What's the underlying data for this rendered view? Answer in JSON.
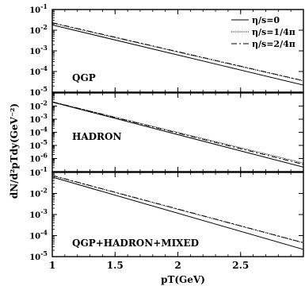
{
  "chart_data": [
    {
      "type": "line",
      "panel_label": "QGP",
      "y_scale": "log",
      "ylim": [
        1e-05,
        0.1
      ],
      "yticks": [
        "10-5",
        "10-4",
        "10-3",
        "10-2",
        "10-1"
      ],
      "x": [
        1,
        3
      ],
      "series": [
        {
          "name": "η/s=0",
          "style": "solid",
          "values": [
            0.018,
            2.2e-05
          ]
        },
        {
          "name": "η/s=1/4π",
          "style": "dotted",
          "values": [
            0.022,
            3.5e-05
          ]
        },
        {
          "name": "η/s=2/4π",
          "style": "dashdot",
          "values": [
            0.023,
            3.6e-05
          ]
        }
      ]
    },
    {
      "type": "line",
      "panel_label": "HADRON",
      "y_scale": "log",
      "ylim": [
        1e-07,
        0.1
      ],
      "yticks": [
        "10-6",
        "10-5",
        "10-4",
        "10-3",
        "10-2"
      ],
      "x": [
        1,
        3
      ],
      "series": [
        {
          "name": "η/s=0",
          "style": "solid",
          "values": [
            0.02,
            2.2e-07
          ]
        },
        {
          "name": "η/s=1/4π",
          "style": "dotted",
          "values": [
            0.021,
            4.5e-07
          ]
        },
        {
          "name": "η/s=2/4π",
          "style": "dashdot",
          "values": [
            0.021,
            3.6e-07
          ]
        }
      ]
    },
    {
      "type": "line",
      "panel_label": "QGP+HADRON+MIXED",
      "y_scale": "log",
      "ylim": [
        1e-05,
        0.1
      ],
      "yticks": [
        "10-5",
        "10-4",
        "10-3",
        "10-2",
        "10-1"
      ],
      "x": [
        1,
        3
      ],
      "series": [
        {
          "name": "η/s=0",
          "style": "solid",
          "values": [
            0.06,
            2.2e-05
          ]
        },
        {
          "name": "η/s=1/4π",
          "style": "dotted",
          "values": [
            0.07,
            4.5e-05
          ]
        },
        {
          "name": "η/s=2/4π",
          "style": "dashdot",
          "values": [
            0.072,
            4.6e-05
          ]
        }
      ]
    }
  ],
  "shared": {
    "xlim": [
      1,
      3
    ],
    "xticks": [
      "1",
      "1.5",
      "2",
      "2.5"
    ],
    "xtick_values": [
      1,
      1.5,
      2,
      2.5
    ],
    "xlabel": "pT(GeV)",
    "ylabel": "dN/d²pTdy(GeV⁻²)",
    "legend_placement": "top-right of first panel"
  }
}
